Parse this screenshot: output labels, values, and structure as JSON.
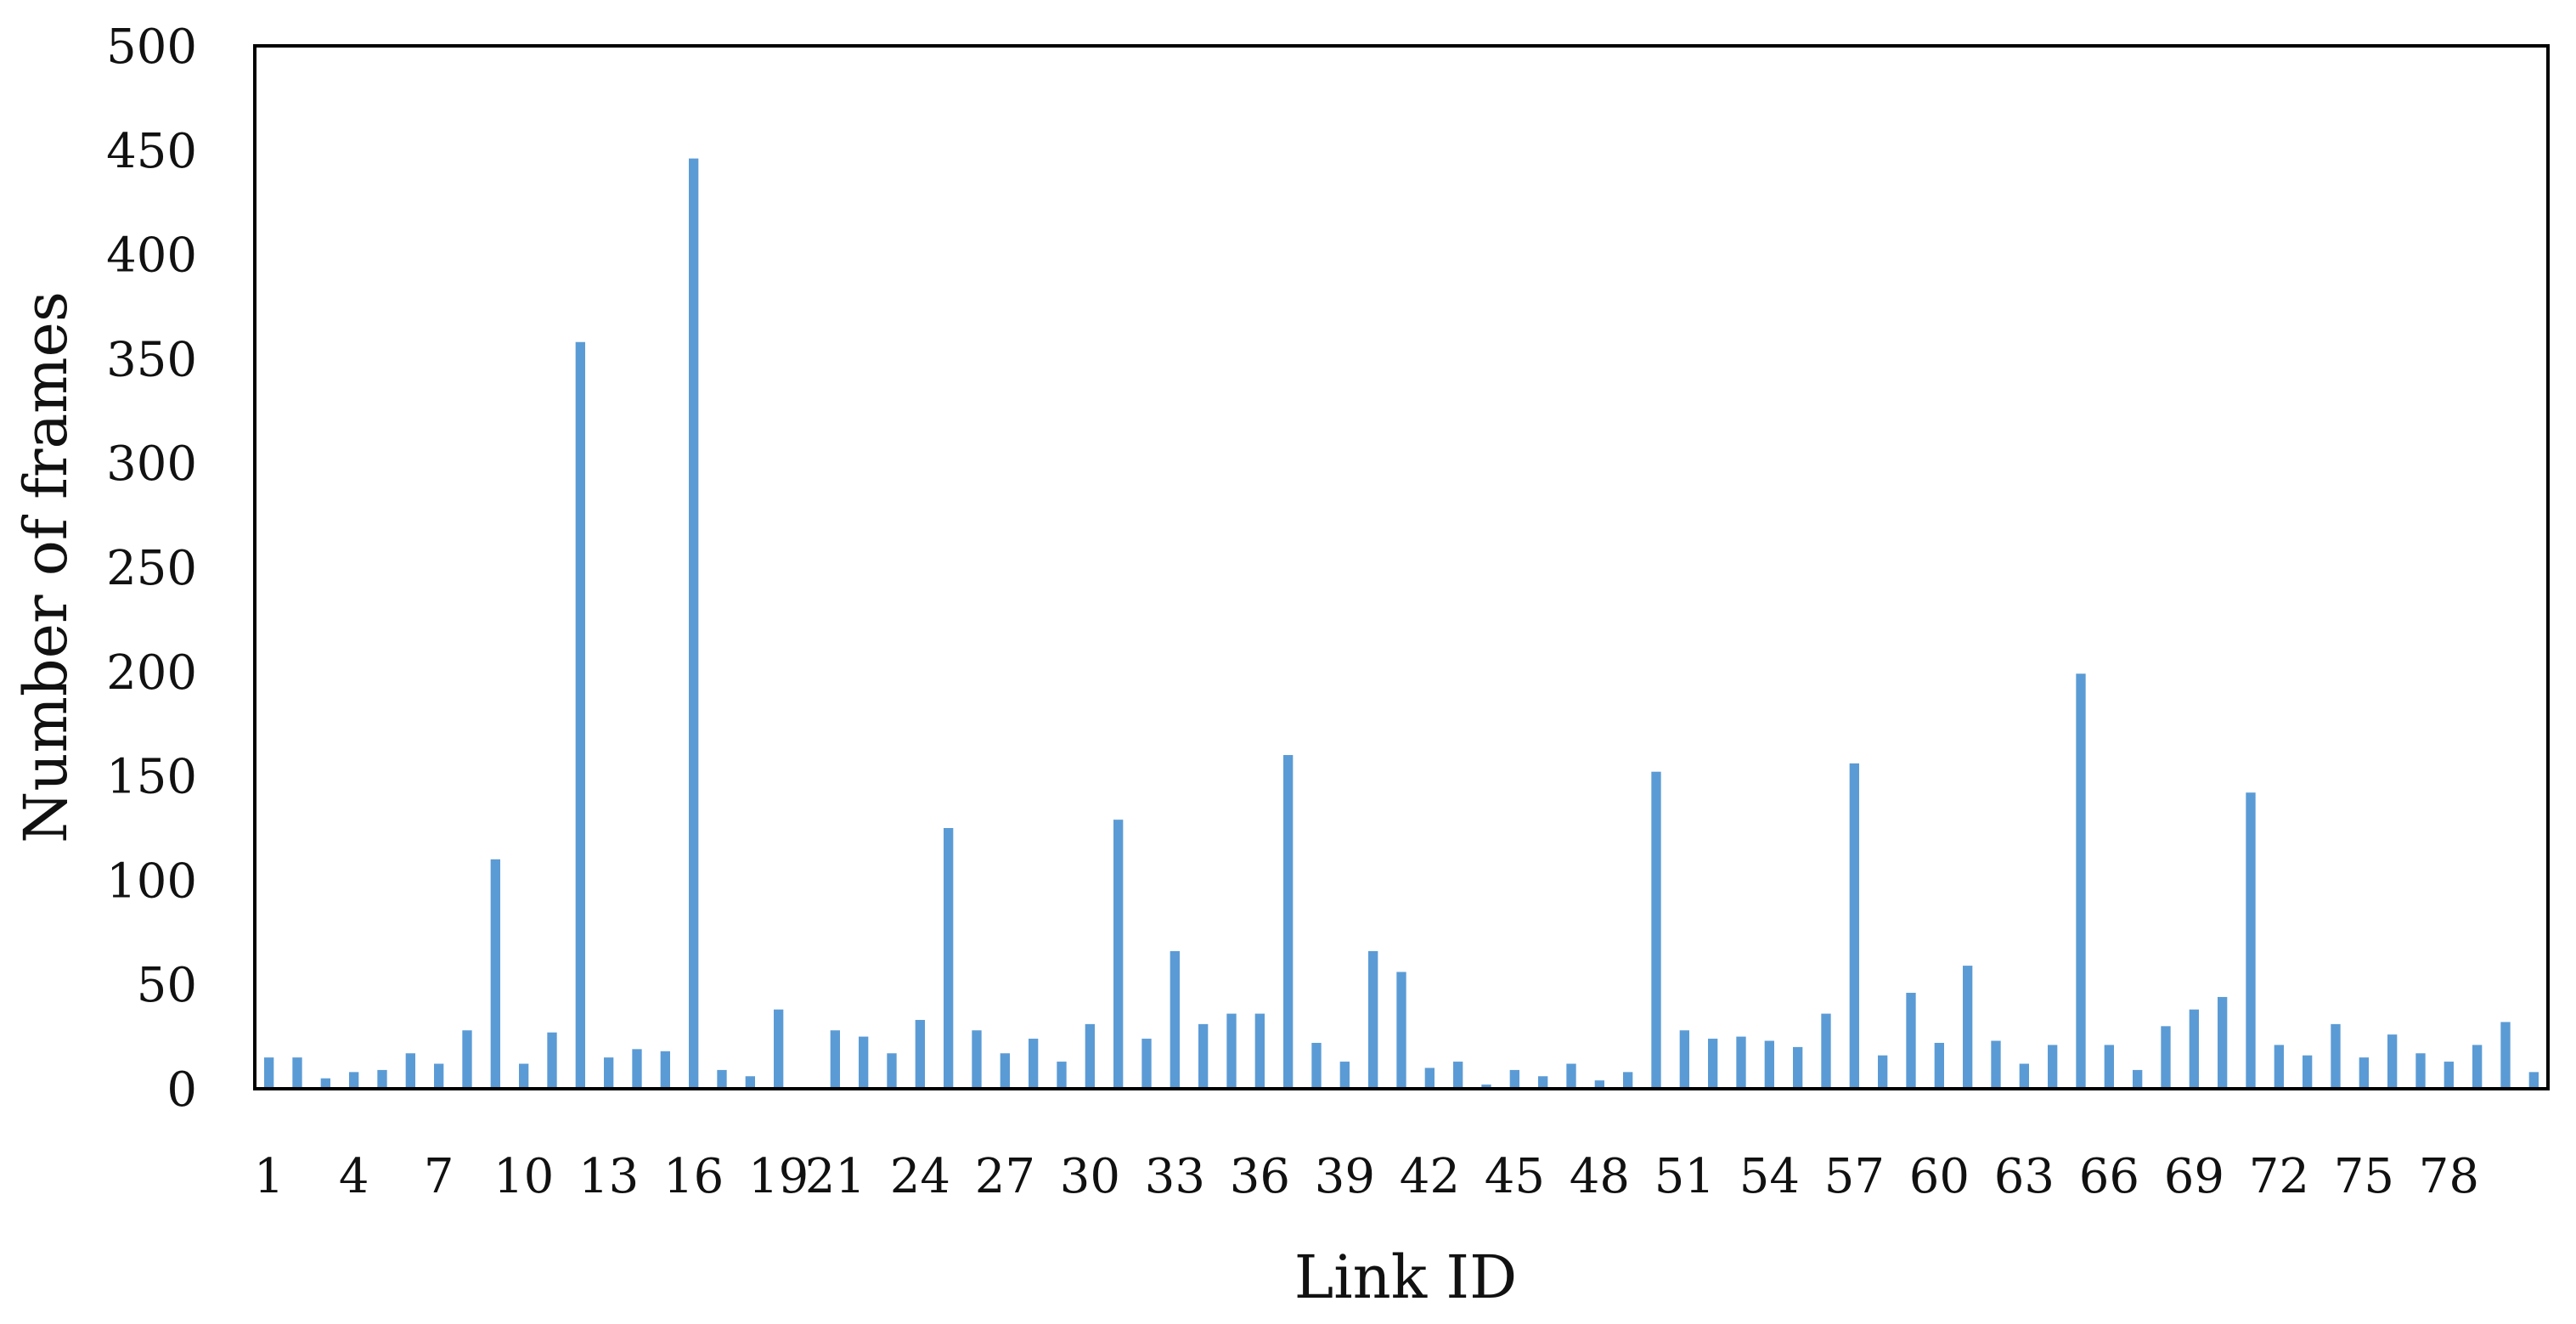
{
  "chart_data": {
    "type": "bar",
    "xlabel": "Link ID",
    "ylabel": "Number of frames",
    "ylim": [
      0,
      500
    ],
    "yticks": [
      0,
      50,
      100,
      150,
      200,
      250,
      300,
      350,
      400,
      450,
      500
    ],
    "xtick_labels": [
      "1",
      "4",
      "7",
      "10",
      "13",
      "16",
      "19",
      "21",
      "24",
      "27",
      "30",
      "33",
      "36",
      "39",
      "42",
      "45",
      "48",
      "51",
      "54",
      "57",
      "60",
      "63",
      "66",
      "69",
      "72",
      "75",
      "78"
    ],
    "grid": false,
    "bar_color": "#5b9bd5",
    "values": [
      15,
      15,
      5,
      8,
      9,
      17,
      12,
      28,
      110,
      12,
      27,
      358,
      15,
      19,
      18,
      446,
      9,
      6,
      38,
      0,
      28,
      25,
      17,
      33,
      125,
      28,
      17,
      24,
      13,
      31,
      129,
      24,
      66,
      31,
      36,
      36,
      160,
      22,
      13,
      66,
      56,
      10,
      13,
      2,
      9,
      6,
      12,
      4,
      8,
      152,
      28,
      24,
      25,
      23,
      20,
      36,
      156,
      16,
      46,
      22,
      59,
      23,
      12,
      21,
      199,
      21,
      9,
      30,
      38,
      44,
      142,
      21,
      16,
      31,
      15,
      26,
      17,
      13,
      21,
      32,
      8
    ]
  }
}
